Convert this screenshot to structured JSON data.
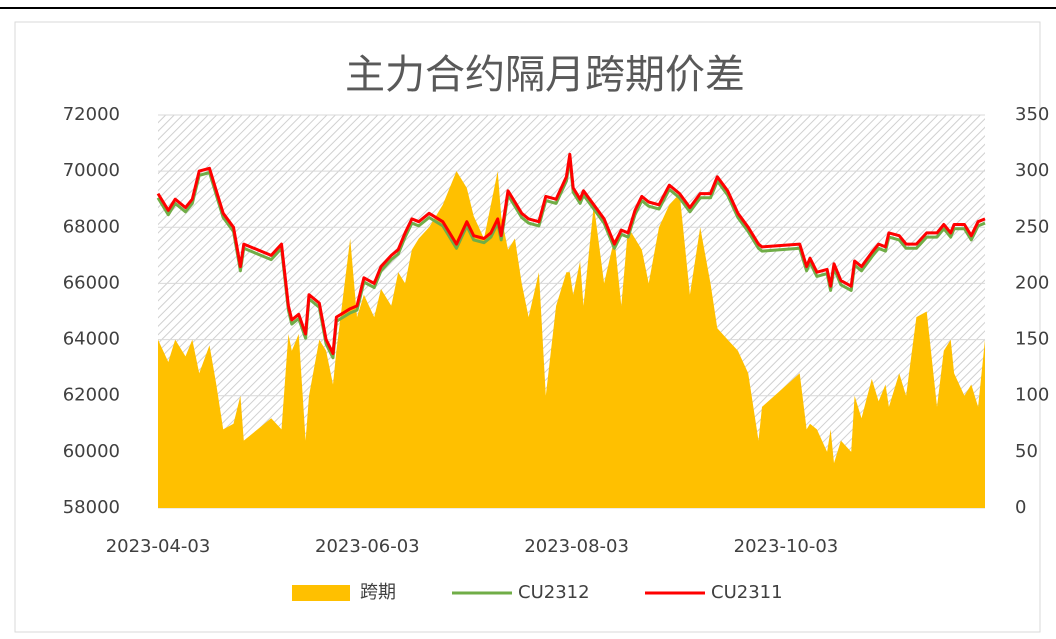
{
  "chart_data": {
    "type": "combo",
    "title": "主力合约隔月跨期价差",
    "x": [
      "2023-04-03",
      "2023-04-06",
      "2023-04-08",
      "2023-04-11",
      "2023-04-13",
      "2023-04-15",
      "2023-04-18",
      "2023-04-20",
      "2023-04-22",
      "2023-04-25",
      "2023-04-27",
      "2023-04-28",
      "2023-05-06",
      "2023-05-09",
      "2023-05-11",
      "2023-05-12",
      "2023-05-14",
      "2023-05-16",
      "2023-05-17",
      "2023-05-20",
      "2023-05-22",
      "2023-05-24",
      "2023-05-25",
      "2023-05-29",
      "2023-05-31",
      "2023-06-02",
      "2023-06-05",
      "2023-06-07",
      "2023-06-10",
      "2023-06-12",
      "2023-06-14",
      "2023-06-16",
      "2023-06-18",
      "2023-06-21",
      "2023-06-25",
      "2023-06-29",
      "2023-07-02",
      "2023-07-04",
      "2023-07-07",
      "2023-07-09",
      "2023-07-11",
      "2023-07-12",
      "2023-07-14",
      "2023-07-16",
      "2023-07-18",
      "2023-07-20",
      "2023-07-23",
      "2023-07-25",
      "2023-07-28",
      "2023-07-31",
      "2023-08-01",
      "2023-08-02",
      "2023-08-04",
      "2023-08-05",
      "2023-08-08",
      "2023-08-11",
      "2023-08-14",
      "2023-08-16",
      "2023-08-18",
      "2023-08-20",
      "2023-08-22",
      "2023-08-24",
      "2023-08-27",
      "2023-08-30",
      "2023-09-02",
      "2023-09-05",
      "2023-09-08",
      "2023-09-11",
      "2023-09-13",
      "2023-09-16",
      "2023-09-19",
      "2023-09-22",
      "2023-09-25",
      "2023-09-26",
      "2023-10-07",
      "2023-10-09",
      "2023-10-10",
      "2023-10-12",
      "2023-10-15",
      "2023-10-16",
      "2023-10-17",
      "2023-10-19",
      "2023-10-22",
      "2023-10-23",
      "2023-10-25",
      "2023-10-28",
      "2023-10-30",
      "2023-11-01",
      "2023-11-02",
      "2023-11-05",
      "2023-11-07",
      "2023-11-10",
      "2023-11-13",
      "2023-11-16",
      "2023-11-18",
      "2023-11-20",
      "2023-11-21",
      "2023-11-24",
      "2023-11-26",
      "2023-11-28",
      "2023-11-30"
    ],
    "series": [
      {
        "name": "跨期",
        "type": "area",
        "axis": "y2",
        "color": "#ffc000",
        "values": [
          150,
          130,
          150,
          135,
          150,
          120,
          145,
          110,
          70,
          75,
          100,
          60,
          80,
          70,
          155,
          140,
          155,
          60,
          100,
          150,
          140,
          110,
          140,
          240,
          170,
          190,
          170,
          195,
          180,
          210,
          200,
          230,
          240,
          250,
          270,
          300,
          285,
          260,
          240,
          270,
          300,
          260,
          230,
          240,
          200,
          170,
          210,
          100,
          180,
          210,
          210,
          190,
          220,
          180,
          270,
          200,
          240,
          180,
          250,
          240,
          230,
          200,
          250,
          270,
          280,
          190,
          250,
          200,
          160,
          150,
          140,
          120,
          60,
          90,
          120,
          70,
          75,
          70,
          50,
          70,
          40,
          60,
          50,
          100,
          80,
          115,
          95,
          110,
          90,
          120,
          100,
          170,
          175,
          90,
          140,
          150,
          120,
          100,
          110,
          90,
          150
        ]
      },
      {
        "name": "CU2312",
        "type": "line",
        "color": "#70ad47",
        "values": [
          69050,
          68450,
          68850,
          68550,
          68850,
          69850,
          69950,
          69150,
          68350,
          67850,
          66450,
          67250,
          66850,
          67250,
          65050,
          64550,
          64750,
          64050,
          65450,
          65150,
          63850,
          63350,
          64650,
          64950,
          65050,
          66050,
          65850,
          66450,
          66850,
          67050,
          67650,
          68150,
          68050,
          68350,
          68050,
          67250,
          68050,
          67550,
          67450,
          67650,
          68150,
          67550,
          69150,
          68750,
          68350,
          68150,
          68050,
          68950,
          68850,
          69650,
          70450,
          69250,
          68850,
          69150,
          68650,
          68150,
          67250,
          67750,
          67650,
          68450,
          68950,
          68750,
          68650,
          69350,
          69050,
          68550,
          69050,
          69050,
          69650,
          69150,
          68350,
          67850,
          67250,
          67150,
          67250,
          66450,
          66750,
          66250,
          66350,
          65750,
          66550,
          65950,
          65750,
          66650,
          66450,
          66950,
          67250,
          67150,
          67650,
          67550,
          67250,
          67250,
          67650,
          67650,
          67950,
          67650,
          67950,
          67950,
          67550,
          68050,
          68150
        ]
      },
      {
        "name": "CU2311",
        "type": "line",
        "color": "#ff0000",
        "values": [
          69200,
          68600,
          69000,
          68700,
          69000,
          70000,
          70100,
          69300,
          68500,
          68000,
          66600,
          67400,
          67000,
          67400,
          65200,
          64700,
          64900,
          64200,
          65600,
          65300,
          64000,
          63500,
          64800,
          65100,
          65200,
          66200,
          66000,
          66600,
          67000,
          67200,
          67800,
          68300,
          68200,
          68500,
          68200,
          67400,
          68200,
          67700,
          67600,
          67800,
          68300,
          67700,
          69300,
          68900,
          68500,
          68300,
          68200,
          69100,
          69000,
          69800,
          70600,
          69400,
          69000,
          69300,
          68800,
          68300,
          67400,
          67900,
          67800,
          68600,
          69100,
          68900,
          68800,
          69500,
          69200,
          68700,
          69200,
          69200,
          69800,
          69300,
          68500,
          68000,
          67400,
          67300,
          67400,
          66600,
          66900,
          66400,
          66500,
          65900,
          66700,
          66100,
          65900,
          66800,
          66600,
          67100,
          67400,
          67300,
          67800,
          67700,
          67400,
          67400,
          67800,
          67800,
          68100,
          67800,
          68100,
          68100,
          67700,
          68200,
          68300
        ]
      }
    ],
    "xlim": [
      "2023-04-03",
      "2023-11-30"
    ],
    "xticks": [
      "2023-04-03",
      "2023-06-03",
      "2023-08-03",
      "2023-10-03"
    ],
    "ylim": [
      58000,
      72000
    ],
    "yticks": [
      58000,
      60000,
      62000,
      64000,
      66000,
      68000,
      70000,
      72000
    ],
    "y2lim": [
      0,
      350
    ],
    "y2ticks": [
      0,
      50,
      100,
      150,
      200,
      250,
      300,
      350
    ],
    "grid": true,
    "legend": "bottom"
  }
}
